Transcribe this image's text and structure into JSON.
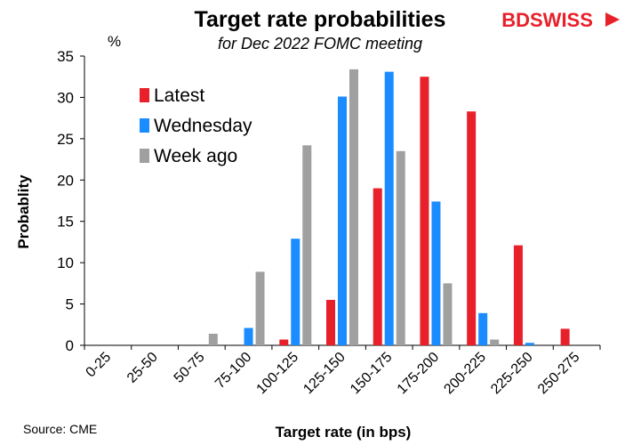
{
  "chart_data": {
    "type": "bar",
    "title": "Target rate probabilities",
    "subtitle": "for Dec 2022 FOMC meeting",
    "unit_label": "%",
    "xlabel": "Target rate (in bps)",
    "ylabel": "Probablity",
    "ylim": [
      0,
      35
    ],
    "yticks": [
      0,
      5,
      10,
      15,
      20,
      25,
      30,
      35
    ],
    "grid": false,
    "legend_position": "top-left",
    "categories": [
      "0-25",
      "25-50",
      "50-75",
      "75-100",
      "100-125",
      "125-150",
      "150-175",
      "175-200",
      "200-225",
      "225-250",
      "250-275"
    ],
    "series": [
      {
        "name": "Latest",
        "color": "#e8202a",
        "values": [
          0,
          0,
          0,
          0,
          0.7,
          5.5,
          19.0,
          32.5,
          28.3,
          12.1,
          2.0
        ]
      },
      {
        "name": "Wednesday",
        "color": "#1a8cff",
        "values": [
          0,
          0,
          0,
          2.1,
          12.9,
          30.1,
          33.1,
          17.4,
          3.9,
          0.3,
          0
        ]
      },
      {
        "name": "Week ago",
        "color": "#a0a0a0",
        "values": [
          0,
          0,
          1.4,
          8.9,
          24.2,
          33.4,
          23.5,
          7.5,
          0.7,
          0,
          0
        ]
      }
    ],
    "source": "Source: CME"
  },
  "brand": {
    "name_part1": "BD",
    "name_part2": "SWISS",
    "color": "#e8202a"
  }
}
